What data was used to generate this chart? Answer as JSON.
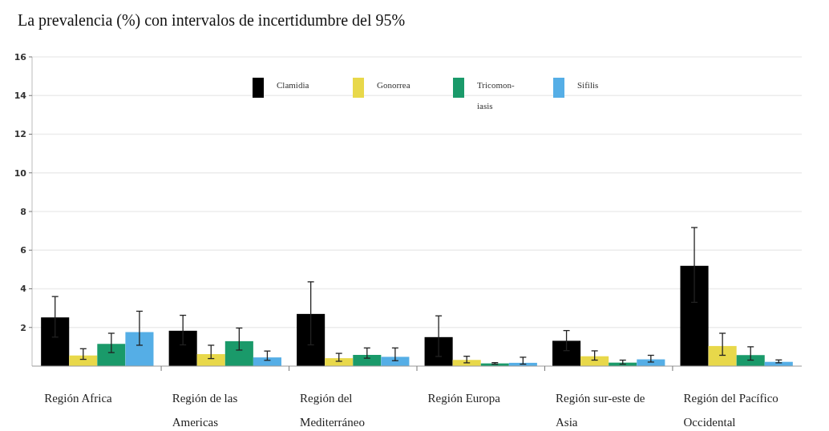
{
  "chart_data": {
    "type": "bar",
    "title": "La prevalencia (%) con intervalos de incertidumbre del 95%",
    "categories": [
      "Región Africa",
      "Región de las Americas",
      "Región del Mediterráneo",
      "Región Europa",
      "Región sur-este de Asia",
      "Región del Pacífico Occidental"
    ],
    "series": [
      {
        "name": "Clamidia",
        "color": "#000000",
        "values": [
          2.52,
          1.83,
          2.7,
          1.5,
          1.31,
          5.19
        ],
        "errors": [
          [
            1.5,
            3.6
          ],
          [
            1.1,
            2.63
          ],
          [
            1.1,
            4.36
          ],
          [
            0.5,
            2.6
          ],
          [
            0.8,
            1.84
          ],
          [
            3.3,
            7.17
          ]
        ]
      },
      {
        "name": "Gonorrea",
        "color": "#e8d84a",
        "values": [
          0.55,
          0.62,
          0.41,
          0.32,
          0.51,
          1.04
        ],
        "errors": [
          [
            0.35,
            0.9
          ],
          [
            0.39,
            1.08
          ],
          [
            0.25,
            0.66
          ],
          [
            0.17,
            0.51
          ],
          [
            0.31,
            0.79
          ],
          [
            0.56,
            1.7
          ]
        ]
      },
      {
        "name": "Tricomon-iasis",
        "color": "#1a9a6a",
        "values": [
          1.15,
          1.29,
          0.58,
          0.14,
          0.18,
          0.57
        ],
        "errors": [
          [
            0.7,
            1.7
          ],
          [
            0.83,
            1.97
          ],
          [
            0.41,
            0.94
          ],
          [
            0.1,
            0.18
          ],
          [
            0.1,
            0.31
          ],
          [
            0.31,
            1.0
          ]
        ]
      },
      {
        "name": "Sifilis",
        "color": "#55aee6",
        "values": [
          1.76,
          0.45,
          0.48,
          0.17,
          0.35,
          0.22
        ],
        "errors": [
          [
            1.08,
            2.84
          ],
          [
            0.3,
            0.78
          ],
          [
            0.28,
            0.94
          ],
          [
            0.1,
            0.46
          ],
          [
            0.21,
            0.56
          ],
          [
            0.17,
            0.32
          ]
        ]
      }
    ],
    "ylim": [
      0,
      16
    ],
    "yticks": [
      2,
      4,
      6,
      8,
      10,
      12,
      14,
      16
    ],
    "grid": "y",
    "legend": "top"
  }
}
